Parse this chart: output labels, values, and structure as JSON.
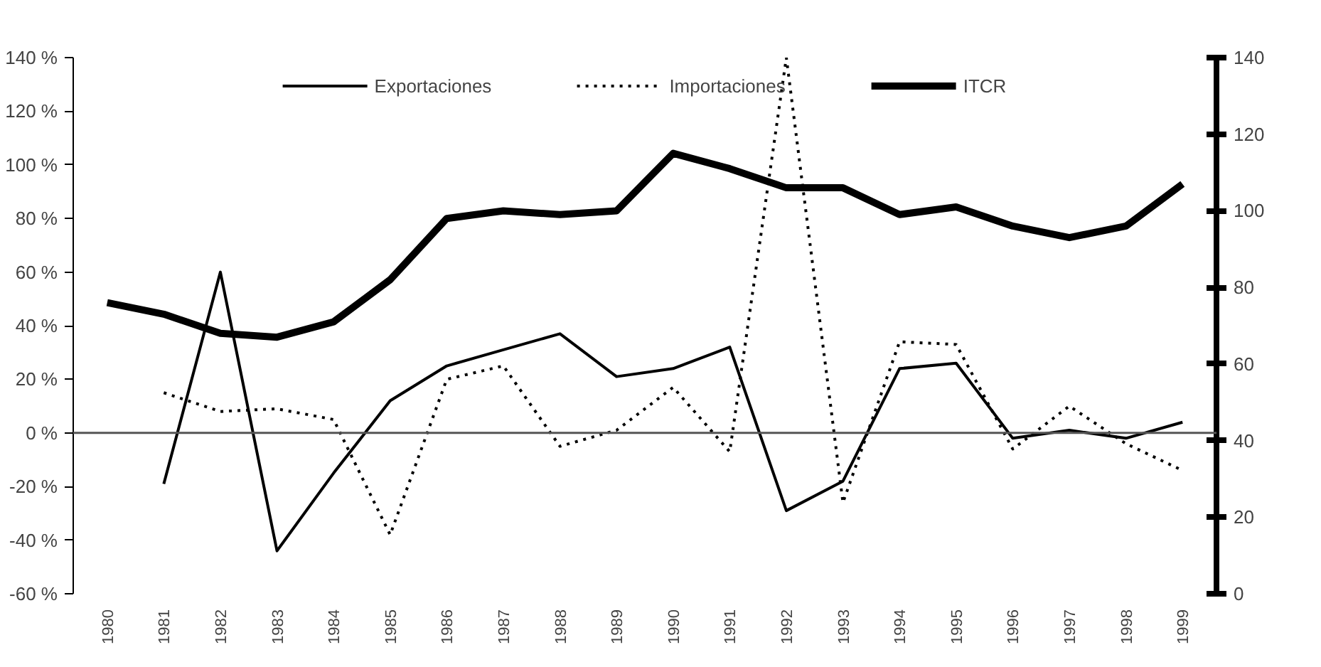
{
  "chart_data": {
    "type": "line",
    "categories": [
      "1980",
      "1981",
      "1982",
      "1983",
      "1984",
      "1985",
      "1986",
      "1987",
      "1988",
      "1989",
      "1990",
      "1991",
      "1992",
      "1993",
      "1994",
      "1995",
      "1996",
      "1997",
      "1998",
      "1999"
    ],
    "series": [
      {
        "name": "Exportaciones",
        "color": "#000000",
        "line_style": "solid",
        "values": [
          null,
          -19,
          60,
          -44,
          -15,
          12,
          25,
          31,
          37,
          21,
          24,
          32,
          -29,
          -18,
          24,
          26,
          -2,
          1,
          -2,
          4
        ]
      },
      {
        "name": "Importaciones",
        "color": "#000000",
        "line_style": "dotted",
        "values": [
          null,
          15,
          8,
          9,
          5,
          -38,
          20,
          25,
          -5,
          1,
          17,
          -7,
          140,
          -26,
          34,
          33,
          -6,
          10,
          -4,
          -14
        ]
      },
      {
        "name": "ITCR",
        "color": "#000000",
        "axis": "y2",
        "line_style": "solid",
        "values": [
          76,
          73,
          68,
          67,
          71,
          82,
          98,
          100,
          99,
          100,
          115,
          111,
          106,
          106,
          99,
          101,
          96,
          93,
          96,
          107
        ]
      }
    ],
    "ylim": [
      -60,
      140
    ],
    "yticks": [
      {
        "value": -60,
        "label": "-60 %"
      },
      {
        "value": -40,
        "label": "-40 %"
      },
      {
        "value": -20,
        "label": "-20 %"
      },
      {
        "value": 0,
        "label": "0 %"
      },
      {
        "value": 20,
        "label": "20 %"
      },
      {
        "value": 40,
        "label": "40 %"
      },
      {
        "value": 60,
        "label": "60 %"
      },
      {
        "value": 80,
        "label": "80 %"
      },
      {
        "value": 100,
        "label": "100 %"
      },
      {
        "value": 120,
        "label": "120 %"
      },
      {
        "value": 140,
        "label": "140 %"
      }
    ],
    "y2lim": [
      0,
      140
    ],
    "y2ticks": [
      0,
      20,
      40,
      60,
      80,
      100,
      120,
      140
    ],
    "ref_lines": [
      {
        "axis": "y",
        "value": 0,
        "color": "#555555"
      }
    ],
    "grid": false,
    "legend": "top",
    "marker": "none"
  }
}
